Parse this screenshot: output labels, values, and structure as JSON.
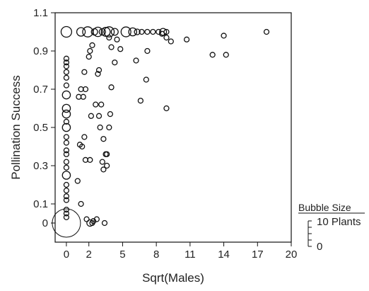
{
  "chart_data": {
    "type": "scatter",
    "xlabel": "Sqrt(Males)",
    "ylabel": "Pollination Success",
    "x_ticks": [
      0,
      2,
      5,
      8,
      11,
      14,
      17,
      20
    ],
    "x_tick_labels": [
      "0",
      "2",
      "5",
      "8",
      "11",
      "14",
      "17",
      "20"
    ],
    "y_ticks": [
      0,
      0.1,
      0.3,
      0.5,
      0.7,
      0.9,
      1.1
    ],
    "y_tick_labels": [
      "0",
      "0.1",
      "0.3",
      "0.5",
      "0.7",
      "0.9",
      "1.1"
    ],
    "xlim": [
      -1,
      20
    ],
    "ylim": [
      -0.1,
      1.1
    ],
    "grid": false,
    "legend": {
      "title": "Bubble Size",
      "max_label": "10 Plants",
      "min_label": "0",
      "max_size": 10
    },
    "series": [
      {
        "points": [
          {
            "x": 0,
            "y": 0,
            "size": 10
          },
          {
            "x": 0,
            "y": 0.03,
            "size": 0.3
          },
          {
            "x": 0,
            "y": 0.05,
            "size": 0.3
          },
          {
            "x": 0,
            "y": 0.07,
            "size": 0.3
          },
          {
            "x": 0,
            "y": 0.12,
            "size": 0.3
          },
          {
            "x": 0,
            "y": 0.14,
            "size": 0.3
          },
          {
            "x": 0,
            "y": 0.17,
            "size": 0.3
          },
          {
            "x": 0,
            "y": 0.2,
            "size": 0.3
          },
          {
            "x": 0,
            "y": 0.25,
            "size": 0.8
          },
          {
            "x": 0,
            "y": 0.29,
            "size": 0.3
          },
          {
            "x": 0,
            "y": 0.32,
            "size": 0.3
          },
          {
            "x": 0,
            "y": 0.36,
            "size": 0.3
          },
          {
            "x": 0,
            "y": 0.38,
            "size": 0.3
          },
          {
            "x": 0,
            "y": 0.42,
            "size": 0.3
          },
          {
            "x": 0,
            "y": 0.45,
            "size": 0.3
          },
          {
            "x": 0,
            "y": 0.5,
            "size": 0.8
          },
          {
            "x": 0,
            "y": 0.53,
            "size": 0.3
          },
          {
            "x": 0,
            "y": 0.57,
            "size": 0.8
          },
          {
            "x": 0,
            "y": 0.6,
            "size": 0.8
          },
          {
            "x": 0,
            "y": 0.67,
            "size": 0.8
          },
          {
            "x": 0,
            "y": 0.72,
            "size": 0.3
          },
          {
            "x": 0,
            "y": 0.76,
            "size": 0.3
          },
          {
            "x": 0,
            "y": 0.79,
            "size": 0.3
          },
          {
            "x": 0,
            "y": 0.82,
            "size": 0.3
          },
          {
            "x": 0,
            "y": 0.84,
            "size": 0.3
          },
          {
            "x": 0,
            "y": 0.86,
            "size": 0.3
          },
          {
            "x": 0,
            "y": 1.0,
            "size": 1.4
          },
          {
            "x": 1.0,
            "y": 0.22,
            "size": 0.3
          },
          {
            "x": 1.3,
            "y": 0.1,
            "size": 0.3
          },
          {
            "x": 1.2,
            "y": 0.41,
            "size": 0.3
          },
          {
            "x": 1.4,
            "y": 0.4,
            "size": 0.3
          },
          {
            "x": 1.1,
            "y": 0.66,
            "size": 0.3
          },
          {
            "x": 1.5,
            "y": 0.66,
            "size": 0.3
          },
          {
            "x": 1.3,
            "y": 0.7,
            "size": 0.3
          },
          {
            "x": 1.7,
            "y": 0.7,
            "size": 0.3
          },
          {
            "x": 1.6,
            "y": 0.45,
            "size": 0.3
          },
          {
            "x": 1.7,
            "y": 0.33,
            "size": 0.3
          },
          {
            "x": 2.1,
            "y": 0.33,
            "size": 0.3
          },
          {
            "x": 1.6,
            "y": 0.79,
            "size": 0.3
          },
          {
            "x": 2.0,
            "y": 0.87,
            "size": 0.3
          },
          {
            "x": 2.1,
            "y": 0.9,
            "size": 0.3
          },
          {
            "x": 2.3,
            "y": 0.93,
            "size": 0.3
          },
          {
            "x": 2.6,
            "y": 0.62,
            "size": 0.3
          },
          {
            "x": 2.2,
            "y": 0.56,
            "size": 0.3
          },
          {
            "x": 2.9,
            "y": 0.56,
            "size": 0.3
          },
          {
            "x": 2.8,
            "y": 0.78,
            "size": 0.3
          },
          {
            "x": 2.9,
            "y": 0.8,
            "size": 0.3
          },
          {
            "x": 3.0,
            "y": 0.5,
            "size": 0.3
          },
          {
            "x": 3.3,
            "y": 0.44,
            "size": 0.3
          },
          {
            "x": 3.1,
            "y": 0.62,
            "size": 0.3
          },
          {
            "x": 3.2,
            "y": 0.32,
            "size": 0.3
          },
          {
            "x": 3.3,
            "y": 0.28,
            "size": 0.3
          },
          {
            "x": 3.5,
            "y": 0.36,
            "size": 0.3
          },
          {
            "x": 3.6,
            "y": 0.36,
            "size": 0.3
          },
          {
            "x": 3.6,
            "y": 0.3,
            "size": 0.3
          },
          {
            "x": 3.8,
            "y": 0.5,
            "size": 0.3
          },
          {
            "x": 3.9,
            "y": 0.57,
            "size": 0.3
          },
          {
            "x": 4.0,
            "y": 0.71,
            "size": 0.3
          },
          {
            "x": 4.3,
            "y": 0.84,
            "size": 0.3
          },
          {
            "x": 4.0,
            "y": 0.92,
            "size": 0.3
          },
          {
            "x": 4.5,
            "y": 0.96,
            "size": 0.3
          },
          {
            "x": 4.8,
            "y": 0.91,
            "size": 0.3
          },
          {
            "x": 3.8,
            "y": 0.97,
            "size": 0.3
          },
          {
            "x": 1.3,
            "y": 1.0,
            "size": 0.9
          },
          {
            "x": 1.9,
            "y": 1.0,
            "size": 1.3
          },
          {
            "x": 2.5,
            "y": 1.0,
            "size": 0.5
          },
          {
            "x": 2.8,
            "y": 1.0,
            "size": 1.1
          },
          {
            "x": 3.2,
            "y": 1.0,
            "size": 0.5
          },
          {
            "x": 3.5,
            "y": 1.0,
            "size": 1.0
          },
          {
            "x": 3.8,
            "y": 1.0,
            "size": 1.3
          },
          {
            "x": 4.3,
            "y": 1.0,
            "size": 0.6
          },
          {
            "x": 5.3,
            "y": 1.0,
            "size": 1.2
          },
          {
            "x": 5.9,
            "y": 1.0,
            "size": 0.8
          },
          {
            "x": 6.3,
            "y": 1.0,
            "size": 0.4
          },
          {
            "x": 6.7,
            "y": 1.0,
            "size": 0.3
          },
          {
            "x": 7.2,
            "y": 1.0,
            "size": 0.3
          },
          {
            "x": 7.7,
            "y": 1.0,
            "size": 0.3
          },
          {
            "x": 8.2,
            "y": 1.0,
            "size": 0.3
          },
          {
            "x": 8.6,
            "y": 1.0,
            "size": 0.6
          },
          {
            "x": 8.9,
            "y": 1.0,
            "size": 0.3
          },
          {
            "x": 8.5,
            "y": 0.99,
            "size": 0.3
          },
          {
            "x": 8.9,
            "y": 0.97,
            "size": 0.3
          },
          {
            "x": 9.3,
            "y": 0.95,
            "size": 0.3
          },
          {
            "x": 10.7,
            "y": 0.96,
            "size": 0.3
          },
          {
            "x": 8.9,
            "y": 0.6,
            "size": 0.3
          },
          {
            "x": 6.6,
            "y": 0.64,
            "size": 0.3
          },
          {
            "x": 7.1,
            "y": 0.75,
            "size": 0.3
          },
          {
            "x": 6.2,
            "y": 0.85,
            "size": 0.3
          },
          {
            "x": 7.2,
            "y": 0.9,
            "size": 0.3
          },
          {
            "x": 13.0,
            "y": 0.88,
            "size": 0.3
          },
          {
            "x": 14.2,
            "y": 0.88,
            "size": 0.3
          },
          {
            "x": 14.0,
            "y": 0.98,
            "size": 0.3
          },
          {
            "x": 17.8,
            "y": 1.0,
            "size": 0.3
          },
          {
            "x": 1.8,
            "y": 0.02,
            "size": 0.3
          },
          {
            "x": 2.1,
            "y": 0.0,
            "size": 0.5
          },
          {
            "x": 2.3,
            "y": 0.0,
            "size": 0.3
          },
          {
            "x": 2.4,
            "y": 0.01,
            "size": 0.3
          },
          {
            "x": 2.7,
            "y": 0.02,
            "size": 0.3
          },
          {
            "x": 3.4,
            "y": 0.0,
            "size": 0.3
          }
        ]
      }
    ]
  }
}
